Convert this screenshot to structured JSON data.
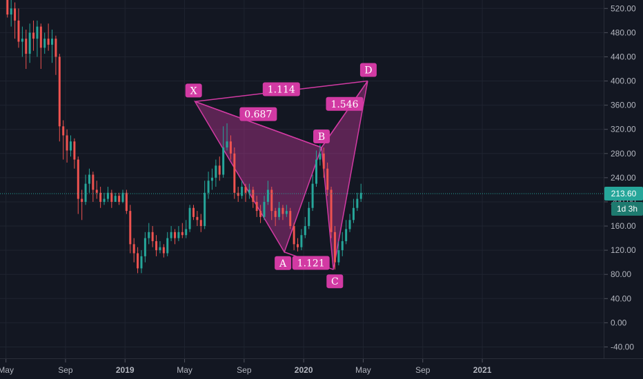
{
  "chart_data": {
    "type": "candlestick",
    "y_axis": {
      "ticks": [
        "520.00",
        "480.00",
        "440.00",
        "400.00",
        "360.00",
        "320.00",
        "280.00",
        "240.00",
        "200.00",
        "160.00",
        "120.00",
        "80.00",
        "40.00",
        "0.00",
        "-40.00"
      ],
      "range": [
        -60,
        534
      ],
      "position": "right"
    },
    "x_axis": {
      "labels": [
        {
          "text": "May",
          "bold": false
        },
        {
          "text": "Sep",
          "bold": false
        },
        {
          "text": "2019",
          "bold": true
        },
        {
          "text": "May",
          "bold": false
        },
        {
          "text": "Sep",
          "bold": false
        },
        {
          "text": "2020",
          "bold": true
        },
        {
          "text": "May",
          "bold": false
        },
        {
          "text": "Sep",
          "bold": false
        },
        {
          "text": "2021",
          "bold": true
        }
      ],
      "range_months": [
        -0.4,
        40.2
      ]
    },
    "grid": true,
    "current_price": {
      "value": 213.6,
      "label": "213.60",
      "countdown": "1d 3h"
    },
    "pattern": {
      "type": "harmonic",
      "points": [
        {
          "label": "X",
          "month": 12.7,
          "price": 366
        },
        {
          "label": "A",
          "month": 18.7,
          "price": 117
        },
        {
          "label": "B",
          "month": 21.2,
          "price": 290
        },
        {
          "label": "C",
          "month": 22.0,
          "price": 88
        },
        {
          "label": "D",
          "month": 24.3,
          "price": 400
        }
      ],
      "ratios": [
        {
          "label": "1.114",
          "between": "X-D"
        },
        {
          "label": "0.687",
          "between": "X-A-B"
        },
        {
          "label": "1.546",
          "between": "B-C-D"
        },
        {
          "label": "1.121",
          "between": "A-C"
        }
      ]
    },
    "colors": {
      "up": "#26a69a",
      "down": "#ef5350",
      "pattern": "#d23aa3",
      "background": "#131722",
      "price_label": "#26a69a",
      "countdown_label": "#1e7a6f"
    },
    "candles": [
      [
        0.1,
        535,
        510,
        545,
        505
      ],
      [
        0.35,
        510,
        520,
        535,
        490
      ],
      [
        0.6,
        520,
        500,
        530,
        470
      ],
      [
        0.85,
        500,
        465,
        520,
        455
      ],
      [
        1.1,
        465,
        470,
        490,
        440
      ],
      [
        1.35,
        470,
        445,
        485,
        420
      ],
      [
        1.6,
        445,
        480,
        495,
        430
      ],
      [
        1.85,
        480,
        470,
        500,
        450
      ],
      [
        2.1,
        470,
        490,
        500,
        440
      ],
      [
        2.35,
        490,
        455,
        495,
        420
      ],
      [
        2.6,
        455,
        470,
        480,
        445
      ],
      [
        2.85,
        470,
        460,
        495,
        450
      ],
      [
        3.1,
        460,
        470,
        485,
        430
      ],
      [
        3.35,
        470,
        440,
        475,
        410
      ],
      [
        3.6,
        440,
        325,
        445,
        300
      ],
      [
        3.85,
        325,
        310,
        335,
        270
      ],
      [
        4.1,
        310,
        285,
        320,
        265
      ],
      [
        4.35,
        285,
        300,
        310,
        275
      ],
      [
        4.6,
        300,
        270,
        305,
        255
      ],
      [
        4.85,
        270,
        205,
        275,
        180
      ],
      [
        5.1,
        205,
        200,
        220,
        170
      ],
      [
        5.35,
        200,
        230,
        245,
        195
      ],
      [
        5.6,
        230,
        245,
        255,
        215
      ],
      [
        5.85,
        245,
        220,
        250,
        200
      ],
      [
        6.1,
        220,
        215,
        235,
        205
      ],
      [
        6.35,
        215,
        200,
        225,
        190
      ],
      [
        6.6,
        200,
        205,
        215,
        195
      ],
      [
        6.85,
        205,
        215,
        225,
        200
      ],
      [
        7.1,
        215,
        200,
        220,
        190
      ],
      [
        7.35,
        200,
        210,
        215,
        200
      ],
      [
        7.6,
        210,
        200,
        215,
        195
      ],
      [
        7.85,
        200,
        215,
        220,
        198
      ],
      [
        8.1,
        215,
        185,
        220,
        180
      ],
      [
        8.35,
        185,
        130,
        195,
        115
      ],
      [
        8.6,
        130,
        115,
        140,
        100
      ],
      [
        8.85,
        115,
        90,
        125,
        82
      ],
      [
        9.1,
        90,
        110,
        120,
        82
      ],
      [
        9.35,
        110,
        140,
        150,
        100
      ],
      [
        9.6,
        140,
        150,
        165,
        130
      ],
      [
        9.85,
        150,
        135,
        160,
        125
      ],
      [
        10.1,
        135,
        120,
        145,
        110
      ],
      [
        10.35,
        120,
        125,
        135,
        115
      ],
      [
        10.6,
        125,
        115,
        130,
        108
      ],
      [
        10.85,
        115,
        140,
        150,
        110
      ],
      [
        11.1,
        140,
        150,
        160,
        135
      ],
      [
        11.35,
        150,
        140,
        155,
        130
      ],
      [
        11.6,
        140,
        150,
        160,
        135
      ],
      [
        11.85,
        150,
        145,
        165,
        140
      ],
      [
        12.1,
        145,
        155,
        170,
        140
      ],
      [
        12.35,
        155,
        190,
        195,
        150
      ],
      [
        12.6,
        190,
        175,
        195,
        170
      ],
      [
        12.85,
        175,
        170,
        185,
        160
      ],
      [
        13.1,
        170,
        160,
        180,
        150
      ],
      [
        13.35,
        160,
        215,
        235,
        155
      ],
      [
        13.6,
        215,
        235,
        250,
        205
      ],
      [
        13.85,
        235,
        240,
        255,
        220
      ],
      [
        14.1,
        240,
        260,
        270,
        225
      ],
      [
        14.35,
        260,
        245,
        275,
        235
      ],
      [
        14.6,
        245,
        290,
        325,
        240
      ],
      [
        14.85,
        290,
        300,
        330,
        285
      ],
      [
        15.1,
        300,
        280,
        310,
        270
      ],
      [
        15.35,
        280,
        215,
        290,
        205
      ],
      [
        15.6,
        215,
        210,
        225,
        200
      ],
      [
        15.85,
        210,
        225,
        235,
        205
      ],
      [
        16.1,
        225,
        215,
        230,
        200
      ],
      [
        16.35,
        215,
        220,
        230,
        205
      ],
      [
        16.6,
        220,
        200,
        225,
        190
      ],
      [
        16.85,
        200,
        185,
        210,
        175
      ],
      [
        17.1,
        185,
        175,
        195,
        165
      ],
      [
        17.35,
        175,
        200,
        210,
        170
      ],
      [
        17.6,
        200,
        220,
        235,
        195
      ],
      [
        17.85,
        220,
        185,
        225,
        170
      ],
      [
        18.1,
        185,
        175,
        190,
        160
      ],
      [
        18.35,
        175,
        190,
        200,
        170
      ],
      [
        18.6,
        190,
        180,
        195,
        170
      ],
      [
        18.85,
        180,
        185,
        195,
        175
      ],
      [
        19.1,
        185,
        160,
        190,
        155
      ],
      [
        19.35,
        160,
        130,
        165,
        120
      ],
      [
        19.6,
        130,
        125,
        140,
        118
      ],
      [
        19.85,
        125,
        145,
        155,
        120
      ],
      [
        20.1,
        145,
        160,
        175,
        140
      ],
      [
        20.35,
        160,
        190,
        200,
        155
      ],
      [
        20.6,
        190,
        230,
        245,
        185
      ],
      [
        20.85,
        230,
        270,
        285,
        225
      ],
      [
        21.1,
        270,
        280,
        295,
        260
      ],
      [
        21.35,
        280,
        255,
        290,
        240
      ],
      [
        21.6,
        255,
        220,
        265,
        210
      ],
      [
        21.85,
        220,
        150,
        225,
        140
      ],
      [
        22.1,
        150,
        100,
        160,
        88
      ],
      [
        22.35,
        100,
        120,
        135,
        95
      ],
      [
        22.6,
        120,
        135,
        150,
        110
      ],
      [
        22.85,
        135,
        155,
        170,
        130
      ],
      [
        23.1,
        155,
        170,
        180,
        150
      ],
      [
        23.35,
        170,
        190,
        205,
        165
      ],
      [
        23.6,
        190,
        205,
        215,
        185
      ],
      [
        23.85,
        205,
        215,
        230,
        200
      ]
    ]
  }
}
